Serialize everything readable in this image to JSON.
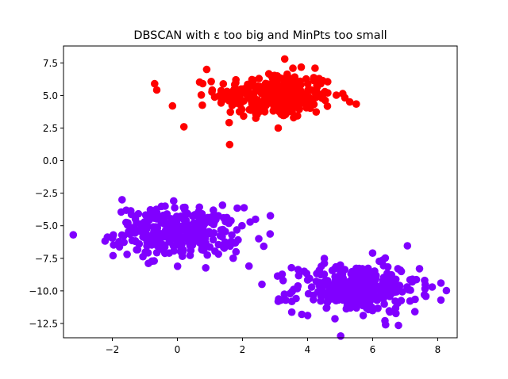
{
  "chart_data": {
    "type": "scatter",
    "title": "DBSCAN with ε too big and MinPts too small",
    "xlabel": "",
    "ylabel": "",
    "xlim": [
      -3.5,
      8.6
    ],
    "ylim": [
      -13.6,
      8.8
    ],
    "xticks": [
      -2,
      0,
      2,
      4,
      6,
      8
    ],
    "xtick_labels": [
      "−2",
      "0",
      "2",
      "4",
      "6",
      "8"
    ],
    "yticks": [
      7.5,
      5.0,
      2.5,
      0.0,
      -2.5,
      -5.0,
      -7.5,
      -10.0,
      -12.5
    ],
    "ytick_labels": [
      "7.5",
      "5.0",
      "2.5",
      "0.0",
      "−2.5",
      "−5.0",
      "−7.5",
      "−10.0",
      "−12.5"
    ],
    "grid": false,
    "clusters": [
      {
        "color": "#ff0000",
        "points_shown": "approximate sample of the dense upper cluster",
        "center": [
          3.0,
          5.0
        ],
        "spread": [
          0.9,
          0.9
        ],
        "count": 300,
        "extra_points": [
          [
            -0.7,
            5.9
          ],
          [
            0.2,
            2.6
          ],
          [
            -0.15,
            4.2
          ],
          [
            3.1,
            2.5
          ],
          [
            5.3,
            4.5
          ],
          [
            3.3,
            7.8
          ],
          [
            0.9,
            7.0
          ]
        ]
      },
      {
        "color": "#8000ff",
        "points_shown": "approximate sample of the two merged lower clusters",
        "center": [
          0.0,
          -5.5
        ],
        "spread": [
          0.95,
          0.95
        ],
        "count": 300,
        "extra_points": [
          [
            -3.2,
            -5.7
          ],
          [
            -1.7,
            -3.0
          ],
          [
            2.4,
            -4.5
          ],
          [
            2.2,
            -8.1
          ],
          [
            2.6,
            -9.5
          ],
          [
            1.8,
            -7.0
          ],
          [
            2.5,
            -6.0
          ]
        ]
      },
      {
        "color": "#8000ff",
        "center": [
          5.5,
          -9.8
        ],
        "spread": [
          0.95,
          0.95
        ],
        "count": 300,
        "extra_points": [
          [
            3.1,
            -10.8
          ],
          [
            7.3,
            -11.6
          ],
          [
            8.1,
            -10.7
          ],
          [
            6.4,
            -12.6
          ],
          [
            8.1,
            -9.4
          ],
          [
            6.0,
            -7.1
          ],
          [
            3.9,
            -8.5
          ]
        ]
      }
    ]
  }
}
